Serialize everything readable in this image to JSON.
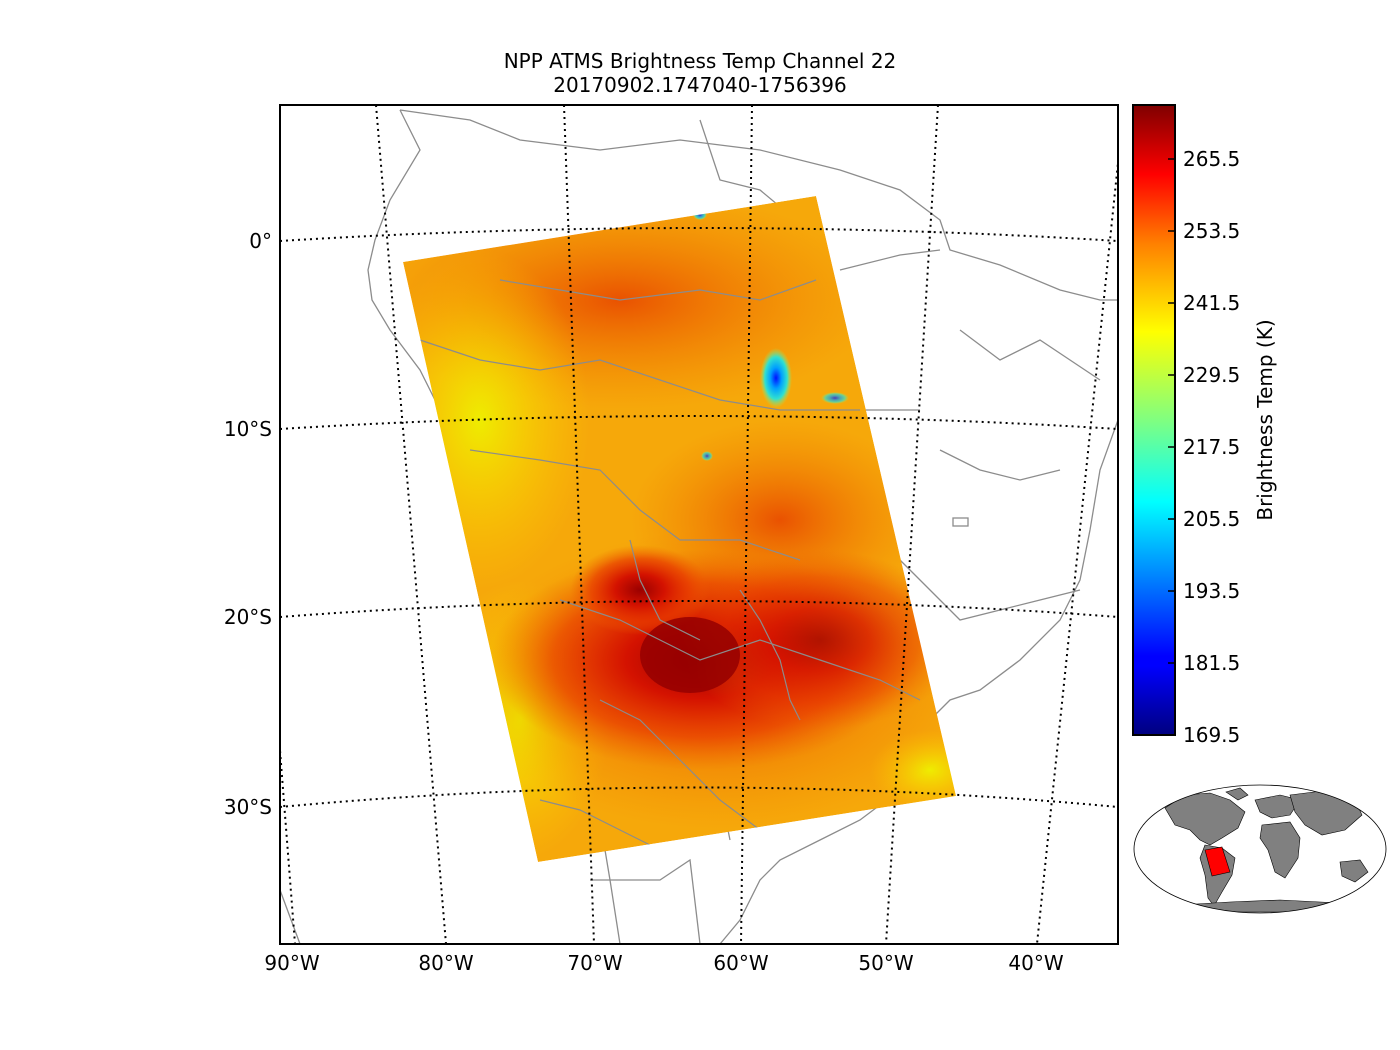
{
  "title": {
    "line1": "NPP ATMS Brightness Temp Channel 22",
    "line2": "20170902.1747040-1756396"
  },
  "map": {
    "lat_labels": [
      "0°",
      "10°S",
      "20°S",
      "30°S"
    ],
    "lon_labels": [
      "90°W",
      "80°W",
      "70°W",
      "60°W",
      "50°W",
      "40°W"
    ],
    "gridline_style": "dotted",
    "coastline_color": "#8c8c8c",
    "swath_color_scale": "jet"
  },
  "colorbar": {
    "label": "Brightness Temp (K)",
    "ticks": [
      "265.5",
      "253.5",
      "241.5",
      "229.5",
      "217.5",
      "205.5",
      "193.5",
      "181.5",
      "169.5"
    ],
    "min": 169.5,
    "max": 274.5
  },
  "inset": {
    "land_color": "#808080",
    "swath_highlight_color": "#ff0000"
  }
}
